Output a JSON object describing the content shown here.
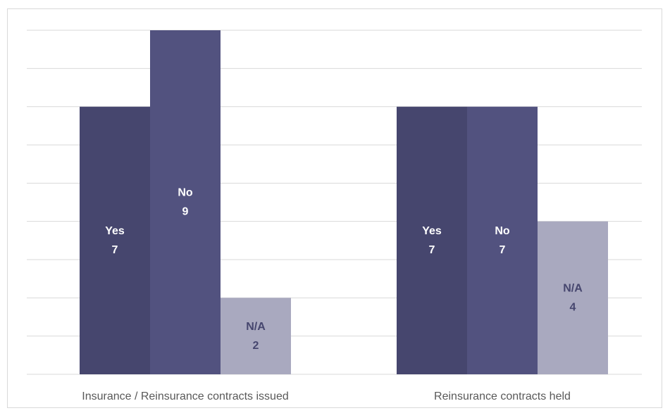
{
  "chart_data": {
    "type": "bar",
    "categories": [
      "Insurance / Reinsurance contracts issued",
      "Reinsurance contracts held"
    ],
    "series": [
      {
        "name": "Yes",
        "color": "#46466e",
        "values": [
          7,
          7
        ]
      },
      {
        "name": "No",
        "color": "#52527f",
        "values": [
          9,
          7
        ]
      },
      {
        "name": "N/A",
        "color": "#a9a9bf",
        "values": [
          2,
          4
        ]
      }
    ],
    "ylim": [
      0,
      9
    ],
    "yticks": [
      0,
      1,
      2,
      3,
      4,
      5,
      6,
      7,
      8,
      9
    ],
    "grid": true
  }
}
